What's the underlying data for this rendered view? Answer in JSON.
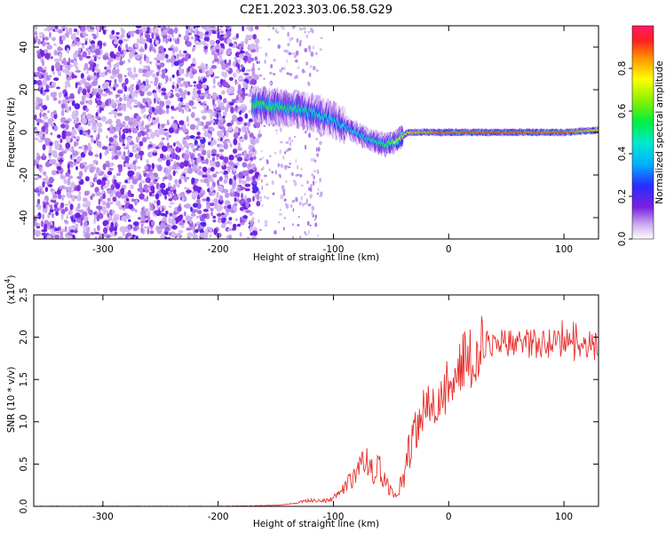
{
  "title": "C2E1.2023.303.06.58.G29",
  "chart_data": [
    {
      "type": "heatmap",
      "xlabel": "Height of straight line (km)",
      "ylabel": "Frequency (Hz)",
      "xlim": [
        -360,
        130
      ],
      "ylim": [
        -50,
        50
      ],
      "xticks": [
        "-300",
        "-200",
        "-100",
        "0",
        "100"
      ],
      "xtick_values": [
        -300,
        -200,
        -100,
        0,
        100
      ],
      "yticks": [
        "40",
        "20",
        "0",
        "-20",
        "-40"
      ],
      "ytick_values": [
        40,
        20,
        0,
        -20,
        -40
      ],
      "colorbar": {
        "label": "Normalized spectral amplitude",
        "range": [
          0,
          1
        ],
        "ticks": [
          "0.0",
          "0.2",
          "0.4",
          "0.6",
          "0.8"
        ],
        "tick_values": [
          0.0,
          0.2,
          0.4,
          0.6,
          0.8
        ]
      },
      "ridge": {
        "x": [
          -170,
          -150,
          -130,
          -110,
          -90,
          -70,
          -55,
          -45,
          -35,
          -20,
          0,
          50,
          100,
          130
        ],
        "freq": [
          13,
          12,
          11,
          8,
          3,
          -3,
          -6,
          -4,
          0,
          0,
          0,
          0,
          0,
          1
        ],
        "amplitude": [
          0.6,
          0.55,
          0.5,
          0.45,
          0.42,
          0.45,
          0.55,
          0.7,
          0.8,
          0.85,
          0.9,
          0.9,
          0.9,
          0.8
        ]
      },
      "noise_region_x": [
        -360,
        -165
      ],
      "sparse_noise_x": [
        -165,
        -110
      ]
    },
    {
      "type": "line",
      "xlabel": "Height of straight line (km)",
      "ylabel": "SNR (10 * v/v)",
      "yscale_label": "(x10",
      "yscale_exp": "4",
      "yscale_close": ")",
      "xlim": [
        -360,
        130
      ],
      "ylim": [
        0,
        2.5
      ],
      "xticks": [
        "-300",
        "-200",
        "-100",
        "0",
        "100"
      ],
      "xtick_values": [
        -300,
        -200,
        -100,
        0,
        100
      ],
      "yticks": [
        "0.0",
        "0.5",
        "1.0",
        "1.5",
        "2.0",
        "2.5"
      ],
      "ytick_values": [
        0,
        0.5,
        1.0,
        1.5,
        2.0,
        2.5
      ],
      "series": [
        {
          "color": "#e8302e",
          "x": [
            -360,
            -300,
            -200,
            -150,
            -130,
            -120,
            -110,
            -100,
            -90,
            -80,
            -75,
            -70,
            -65,
            -60,
            -55,
            -50,
            -45,
            -40,
            -35,
            -30,
            -25,
            -20,
            -10,
            0,
            10,
            20,
            30,
            40,
            60,
            80,
            100,
            115,
            130
          ],
          "y": [
            0.0,
            0.0,
            0.0,
            0.01,
            0.04,
            0.06,
            0.05,
            0.08,
            0.2,
            0.35,
            0.4,
            0.45,
            0.35,
            0.4,
            0.25,
            0.15,
            0.1,
            0.3,
            0.6,
            0.9,
            1.05,
            1.15,
            1.25,
            1.45,
            1.65,
            1.8,
            1.9,
            1.95,
            1.93,
            1.92,
            1.95,
            1.9,
            1.88
          ]
        }
      ]
    }
  ]
}
